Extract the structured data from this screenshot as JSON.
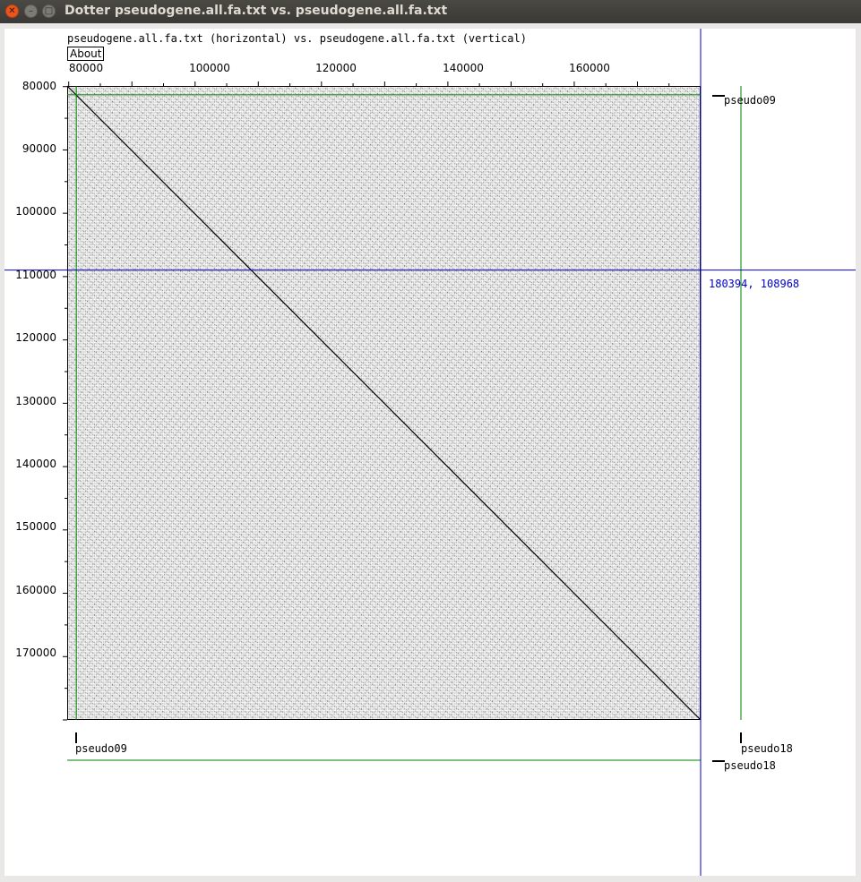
{
  "window": {
    "title": "Dotter pseudogene.all.fa.txt vs. pseudogene.all.fa.txt",
    "controls": [
      "close-icon",
      "minimize-icon",
      "maximize-icon"
    ]
  },
  "header": {
    "heading": "pseudogene.all.fa.txt (horizontal) vs. pseudogene.all.fa.txt (vertical)",
    "about_label": "About"
  },
  "x_axis": {
    "ticks": [
      "80000",
      "100000",
      "120000",
      "140000",
      "160000"
    ]
  },
  "y_axis": {
    "ticks": [
      "80000",
      "90000",
      "100000",
      "110000",
      "120000",
      "130000",
      "140000",
      "150000",
      "160000",
      "170000"
    ]
  },
  "crosshair": {
    "readout": "180394, 108968",
    "color": "#0000cc"
  },
  "features": {
    "right_top_label": "pseudo09",
    "right_bottom_label": "pseudo18",
    "bottom_left_label": "pseudo09",
    "bottom_right_label": "pseudo18",
    "line_color": "#008000"
  },
  "chart_data": {
    "type": "scatter",
    "description_free": true,
    "x_ticks": [
      80000,
      100000,
      120000,
      140000,
      160000
    ],
    "y_ticks": [
      80000,
      90000,
      100000,
      110000,
      120000,
      130000,
      140000,
      150000,
      160000,
      170000
    ],
    "xlim": [
      79760,
      180000
    ],
    "ylim": [
      79900,
      180000
    ],
    "diagonal": [
      [
        79760,
        79900
      ],
      [
        180000,
        180000
      ]
    ],
    "feature_boundary_x": 81200,
    "feature_boundary_y": 81300,
    "cursor": [
      180394,
      108968
    ]
  }
}
